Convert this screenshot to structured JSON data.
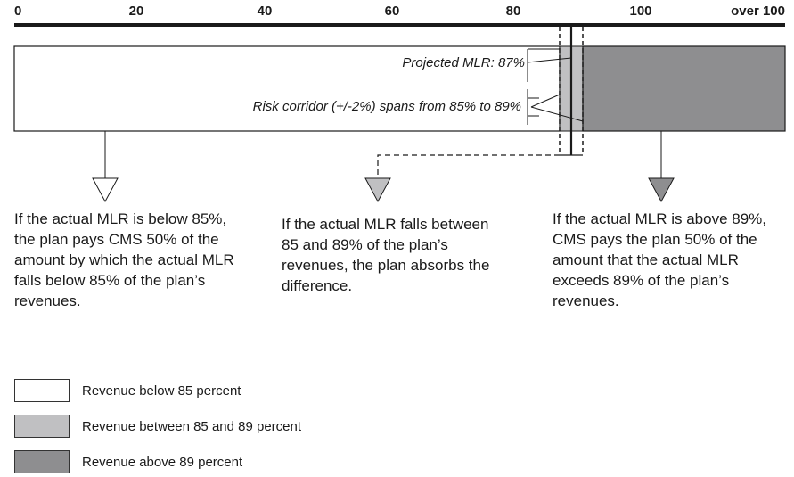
{
  "axis": {
    "ticks": [
      "0",
      "20",
      "40",
      "60",
      "80",
      "100",
      "over 100"
    ]
  },
  "bar": {
    "projected_label": "Projected MLR: 87%",
    "corridor_label": "Risk corridor (+/-2%) spans from 85% to 89%"
  },
  "outcomes": [
    {
      "text": "If the actual MLR is below 85%, the plan pays CMS 50% of the amount by which the actual MLR falls below 85% of the plan’s revenues."
    },
    {
      "text": "If the actual MLR falls between 85 and 89% of the plan’s revenues, the plan absorbs the difference."
    },
    {
      "text": "If the actual MLR is above 89%, CMS pays the plan 50% of the amount that the actual MLR exceeds 89% of the plan’s revenues."
    }
  ],
  "legend": [
    {
      "label": "Revenue below 85 percent",
      "color": "#ffffff"
    },
    {
      "label": "Revenue between 85 and 89 percent",
      "color": "#c0c0c2"
    },
    {
      "label": "Revenue above 89 percent",
      "color": "#8e8e90"
    }
  ],
  "colors": {
    "white": "#ffffff",
    "light_gray": "#c0c0c2",
    "dark_gray": "#8e8e90",
    "line": "#1a1a1a"
  }
}
